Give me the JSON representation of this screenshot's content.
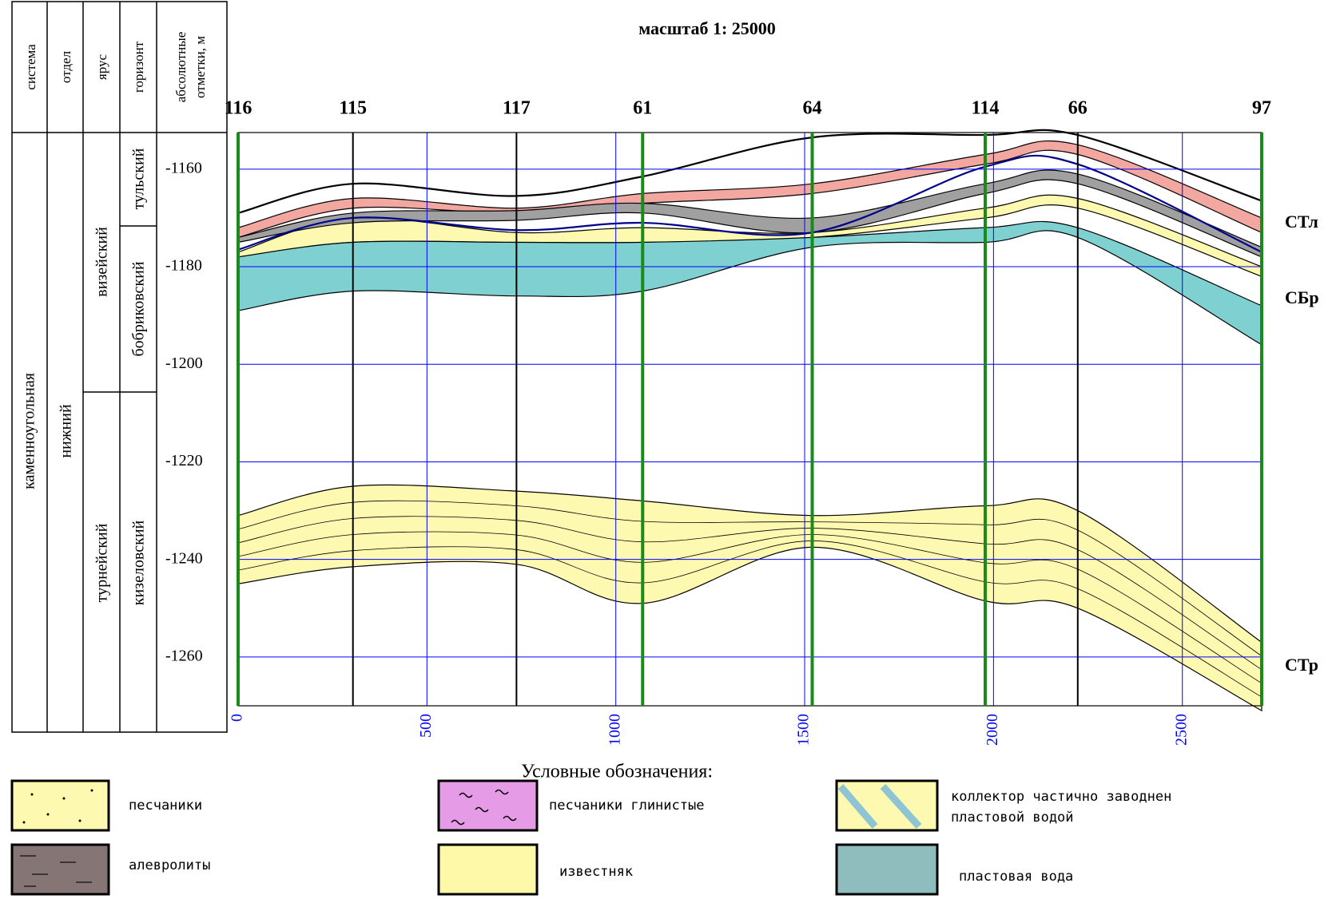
{
  "header": {
    "scale": "масштаб 1: 25000"
  },
  "column": {
    "headers": [
      "система",
      "отдел",
      "ярус",
      "горизонт"
    ],
    "elevation_header": [
      "абсолютные",
      "отметки, м"
    ],
    "system": "каменноугольная",
    "series": "нижний",
    "stages": [
      "визейский",
      "турнейский"
    ],
    "horizons": [
      "тульский",
      "бобриковский",
      "кизеловский"
    ]
  },
  "section": {
    "wells": [
      "116",
      "115",
      "117",
      "61",
      "64",
      "114",
      "66",
      "97"
    ],
    "x": [
      0,
      304,
      737,
      1071,
      1520,
      1978,
      2223,
      2710
    ],
    "well_colors": [
      "#1a8a1a",
      "#000000",
      "#000000",
      "#1a8a1a",
      "#1a8a1a",
      "#1a8a1a",
      "#000000",
      "#1a8a1a"
    ],
    "xlim": [
      0,
      2710
    ],
    "ylim": [
      -1270,
      -1152.5
    ],
    "xticks": [
      0,
      500,
      1000,
      1500,
      2000,
      2500
    ],
    "yticks": [
      -1160,
      -1180,
      -1200,
      -1220,
      -1240,
      -1260
    ],
    "grid": true,
    "grid_color": "#0000ff",
    "bodies": [
      {
        "color": "#fdf9b0",
        "top": [
          -1177,
          -1170,
          -1173,
          -1172,
          -1173,
          -1168,
          -1166,
          -1180
        ],
        "base": [
          -1178,
          -1175,
          -1175,
          -1175,
          -1174,
          -1170,
          -1168,
          -1182
        ]
      },
      {
        "color": "#f2a7a0",
        "top": [
          -1172,
          -1166,
          -1168,
          -1165,
          -1163,
          -1157,
          -1155,
          -1170
        ],
        "base": [
          -1174,
          -1168,
          -1169,
          -1167,
          -1165,
          -1159,
          -1157,
          -1173
        ]
      },
      {
        "color": "#a0a0a0",
        "top": [
          -1174,
          -1169,
          -1168.5,
          -1167,
          -1170,
          -1163,
          -1161,
          -1176
        ],
        "base": [
          -1175,
          -1171,
          -1170.5,
          -1169,
          -1173,
          -1165,
          -1163,
          -1178
        ]
      },
      {
        "color": "#7fd1d1",
        "top": [
          -1178,
          -1175,
          -1175,
          -1175,
          -1174,
          -1172,
          -1172,
          -1188
        ],
        "base": [
          -1189,
          -1185,
          -1186,
          -1185,
          -1176,
          -1175,
          -1174,
          -1196
        ]
      },
      {
        "color": "#fdf9b0",
        "top": [
          -1231,
          -1225,
          -1226,
          -1228,
          -1231,
          -1229,
          -1230,
          -1257
        ],
        "base": [
          -1245,
          -1241.5,
          -1241,
          -1249,
          -1237.5,
          -1248.5,
          -1250,
          -1271
        ]
      }
    ],
    "lines": [
      {
        "color": "#000000",
        "values": [
          -1169,
          -1163,
          -1165.5,
          -1161.5,
          -1153.5,
          -1153,
          -1153,
          -1166.5
        ]
      },
      {
        "color": "#00008b",
        "values": [
          -1176.5,
          -1170,
          -1172.5,
          -1171,
          -1173,
          -1159.5,
          -1159,
          -1177
        ]
      }
    ],
    "horizon_labels": [
      "СТл",
      "СБр",
      "СТр"
    ]
  },
  "legend": {
    "title": "Условные обозначения:",
    "items": [
      {
        "label": [
          "песчаники"
        ],
        "color": "#fdf9b0"
      },
      {
        "label": [
          "алевролиты"
        ],
        "color": "#857575"
      },
      {
        "label": [
          "песчаники глинистые"
        ],
        "color": "#e59be5"
      },
      {
        "label": [
          "известняк"
        ],
        "color": "#fdf9a8"
      },
      {
        "label": [
          "коллектор частично заводнен",
          "пластовой водой"
        ],
        "color": "#fdf9b0"
      },
      {
        "label": [
          "пластовая вода"
        ],
        "color": "#8fbcbc"
      }
    ]
  }
}
